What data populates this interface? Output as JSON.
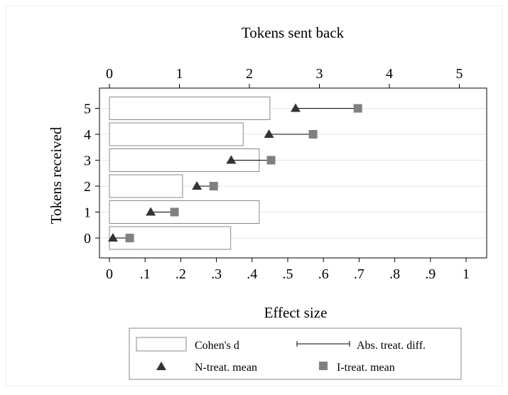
{
  "chart_data": {
    "type": "bar",
    "orientation": "horizontal",
    "title": "",
    "xlabel_bottom": "Effect size",
    "xlabel_top": "Tokens sent back",
    "ylabel": "Tokens received",
    "categories": [
      "0",
      "1",
      "2",
      "3",
      "4",
      "5"
    ],
    "x_bottom_ticks": [
      "0",
      ".1",
      ".2",
      ".3",
      ".4",
      ".5",
      ".6",
      ".7",
      ".8",
      ".9",
      "1"
    ],
    "x_top_ticks": [
      "0",
      "1",
      "2",
      "3",
      "4",
      "5"
    ],
    "y_ticks": [
      "0",
      "1",
      "2",
      "3",
      "4",
      "5"
    ],
    "xlim_bottom": [
      0,
      1
    ],
    "xlim_top": [
      0,
      5
    ],
    "legend_position": "bottom",
    "series": [
      {
        "name": "Cohen's d",
        "kind": "bar",
        "axis": "bottom",
        "color": "#ffffff",
        "stroke": "#888888",
        "values": [
          0.34,
          0.42,
          0.205,
          0.42,
          0.375,
          0.45
        ]
      },
      {
        "name": "N-treat. mean",
        "kind": "triangle",
        "axis": "top",
        "color": "#333333",
        "values": [
          0.05,
          0.59,
          1.25,
          1.74,
          2.28,
          2.66
        ]
      },
      {
        "name": "I-treat. mean",
        "kind": "square",
        "axis": "top",
        "color": "#808080",
        "values": [
          0.29,
          0.93,
          1.49,
          2.31,
          2.91,
          3.55
        ]
      }
    ],
    "difference_label": "Abs. treat. diff.",
    "grid": true
  }
}
